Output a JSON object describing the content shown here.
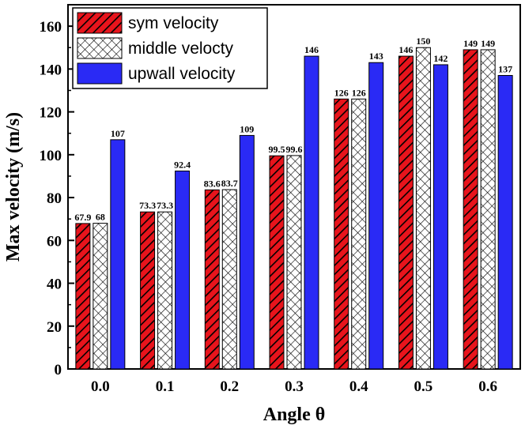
{
  "chart_data": {
    "type": "bar",
    "categories": [
      "0.0",
      "0.1",
      "0.2",
      "0.3",
      "0.4",
      "0.5",
      "0.6"
    ],
    "series": [
      {
        "name": "sym velocity",
        "values": [
          67.9,
          73.3,
          83.6,
          99.5,
          126,
          146,
          149
        ],
        "labels": [
          "67.9",
          "73.3",
          "83.6",
          "99.5",
          "126",
          "146",
          "149"
        ],
        "color": "#e8141c",
        "pattern": "diagonal-hatch"
      },
      {
        "name": "middle velocty",
        "values": [
          68,
          73.3,
          83.7,
          99.6,
          126,
          150,
          149
        ],
        "labels": [
          "68",
          "73.3",
          "83.7",
          "99.6",
          "126",
          "150",
          "149"
        ],
        "color": "#ffffff",
        "pattern": "crosshatch"
      },
      {
        "name": "upwall velocity",
        "values": [
          107,
          92.4,
          109,
          146,
          143,
          142,
          137
        ],
        "labels": [
          "107",
          "92.4",
          "109",
          "146",
          "143",
          "142",
          "137"
        ],
        "color": "#2a2af5",
        "pattern": "solid"
      }
    ],
    "xlabel": "Angle θ",
    "ylabel": "Max velocity (m/s)",
    "ylim": [
      0,
      170
    ],
    "yticks": [
      0,
      20,
      40,
      60,
      80,
      100,
      120,
      140,
      160
    ],
    "legend_position": "top-left",
    "grid": false
  }
}
